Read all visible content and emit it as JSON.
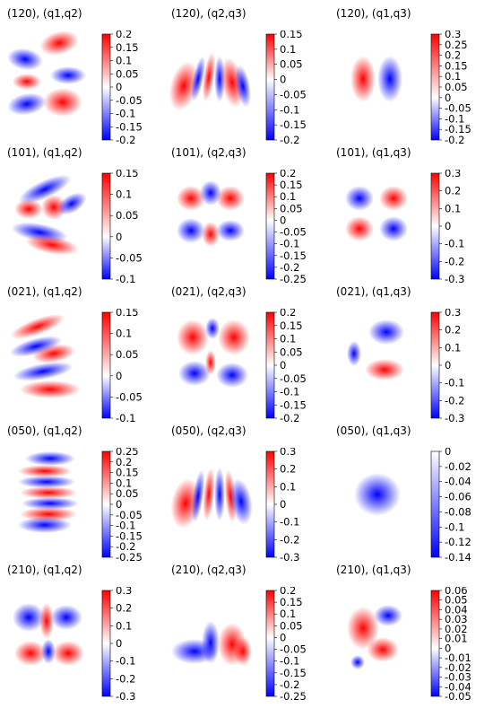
{
  "colors": {
    "negative": "#0000ff",
    "zero": "#ffffff",
    "positive": "#ff0000",
    "background": "#ffffff"
  },
  "chart_data": [
    {
      "type": "heatmap",
      "title": "(120), (q1,q2)",
      "colorbar": {
        "min": -0.2,
        "max": 0.2,
        "ticks": [
          "0.2",
          "0.15",
          "0.1",
          "0.05",
          "0",
          "-0.05",
          "-0.1",
          "-0.15",
          "-0.2"
        ]
      }
    },
    {
      "type": "heatmap",
      "title": "(120), (q2,q3)",
      "colorbar": {
        "min": -0.2,
        "max": 0.15,
        "ticks": [
          "0.15",
          "0.1",
          "0.05",
          "0",
          "-0.05",
          "-0.1",
          "-0.15",
          "-0.2"
        ]
      }
    },
    {
      "type": "heatmap",
      "title": "(120), (q1,q3)",
      "colorbar": {
        "min": -0.2,
        "max": 0.3,
        "ticks": [
          "0.3",
          "0.25",
          "0.2",
          "0.15",
          "0.1",
          "0.05",
          "0",
          "-0.05",
          "-0.1",
          "-0.15",
          "-0.2"
        ]
      }
    },
    {
      "type": "heatmap",
      "title": "(101), (q1,q2)",
      "colorbar": {
        "min": -0.1,
        "max": 0.15,
        "ticks": [
          "0.15",
          "0.1",
          "0.05",
          "0",
          "-0.05",
          "-0.1"
        ]
      }
    },
    {
      "type": "heatmap",
      "title": "(101), (q2,q3)",
      "colorbar": {
        "min": -0.25,
        "max": 0.2,
        "ticks": [
          "0.2",
          "0.15",
          "0.1",
          "0.05",
          "0",
          "-0.05",
          "-0.1",
          "-0.15",
          "-0.2",
          "-0.25"
        ]
      }
    },
    {
      "type": "heatmap",
      "title": "(101), (q1,q3)",
      "colorbar": {
        "min": -0.3,
        "max": 0.3,
        "ticks": [
          "0.3",
          "0.2",
          "0.1",
          "0",
          "-0.1",
          "-0.2",
          "-0.3"
        ]
      }
    },
    {
      "type": "heatmap",
      "title": "(021), (q1,q2)",
      "colorbar": {
        "min": -0.1,
        "max": 0.15,
        "ticks": [
          "0.15",
          "0.1",
          "0.05",
          "0",
          "-0.05",
          "-0.1"
        ]
      }
    },
    {
      "type": "heatmap",
      "title": "(021), (q2,q3)",
      "colorbar": {
        "min": -0.2,
        "max": 0.2,
        "ticks": [
          "0.2",
          "0.15",
          "0.1",
          "0.05",
          "0",
          "-0.05",
          "-0.1",
          "-0.15",
          "-0.2"
        ]
      }
    },
    {
      "type": "heatmap",
      "title": "(021), (q1,q3)",
      "colorbar": {
        "min": -0.3,
        "max": 0.3,
        "ticks": [
          "0.3",
          "0.2",
          "0.1",
          "0",
          "-0.1",
          "-0.2",
          "-0.3"
        ]
      }
    },
    {
      "type": "heatmap",
      "title": "(050), (q1,q2)",
      "colorbar": {
        "min": -0.25,
        "max": 0.25,
        "ticks": [
          "0.25",
          "0.2",
          "0.15",
          "0.1",
          "0.05",
          "0",
          "-0.05",
          "-0.1",
          "-0.15",
          "-0.2",
          "-0.25"
        ]
      }
    },
    {
      "type": "heatmap",
      "title": "(050), (q2,q3)",
      "colorbar": {
        "min": -0.3,
        "max": 0.3,
        "ticks": [
          "0.3",
          "0.2",
          "0.1",
          "0",
          "-0.1",
          "-0.2",
          "-0.3"
        ]
      }
    },
    {
      "type": "heatmap",
      "title": "(050), (q1,q3)",
      "colorbar": {
        "min": -0.14,
        "max": 0,
        "ticks": [
          "0",
          "-0.02",
          "-0.04",
          "-0.06",
          "-0.08",
          "-0.1",
          "-0.12",
          "-0.14"
        ]
      }
    },
    {
      "type": "heatmap",
      "title": "(210), (q1,q2)",
      "colorbar": {
        "min": -0.3,
        "max": 0.3,
        "ticks": [
          "0.3",
          "0.2",
          "0.1",
          "0",
          "-0.1",
          "-0.2",
          "-0.3"
        ]
      }
    },
    {
      "type": "heatmap",
      "title": "(210), (q2,q3)",
      "colorbar": {
        "min": -0.25,
        "max": 0.2,
        "ticks": [
          "0.2",
          "0.15",
          "0.1",
          "0.05",
          "0",
          "-0.05",
          "-0.1",
          "-0.15",
          "-0.2",
          "-0.25"
        ]
      }
    },
    {
      "type": "heatmap",
      "title": "(210), (q1,q3)",
      "colorbar": {
        "min": -0.05,
        "max": 0.06,
        "ticks": [
          "0.06",
          "0.05",
          "0.04",
          "0.03",
          "0.02",
          "0.01",
          "0",
          "-0.01",
          "-0.02",
          "-0.03",
          "-0.04",
          "-0.05"
        ]
      }
    }
  ]
}
